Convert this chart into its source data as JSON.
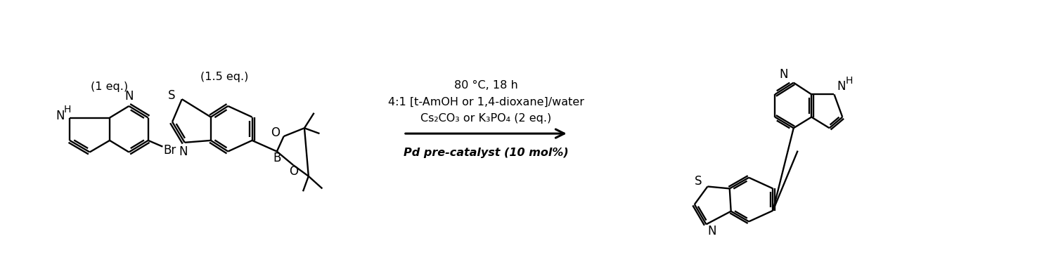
{
  "background_color": "#ffffff",
  "figure_width": 15.02,
  "figure_height": 3.9,
  "dpi": 100,
  "condition_line1": "Pd pre-catalyst (10 mol%)",
  "condition_line2": "Cs₂CO₃ or K₃PO₄ (2 eq.)",
  "condition_line3": "4:1 [t-AmOH or 1,4-dioxane]/water",
  "condition_line4": "80 °C, 18 h",
  "label1": "(1 eq.)",
  "label2": "(1.5 eq.)",
  "arrow_color": "#000000",
  "text_color": "#000000",
  "line_color": "#000000",
  "font_size_conditions": 11.5,
  "font_size_labels": 11.5,
  "lw": 1.7
}
